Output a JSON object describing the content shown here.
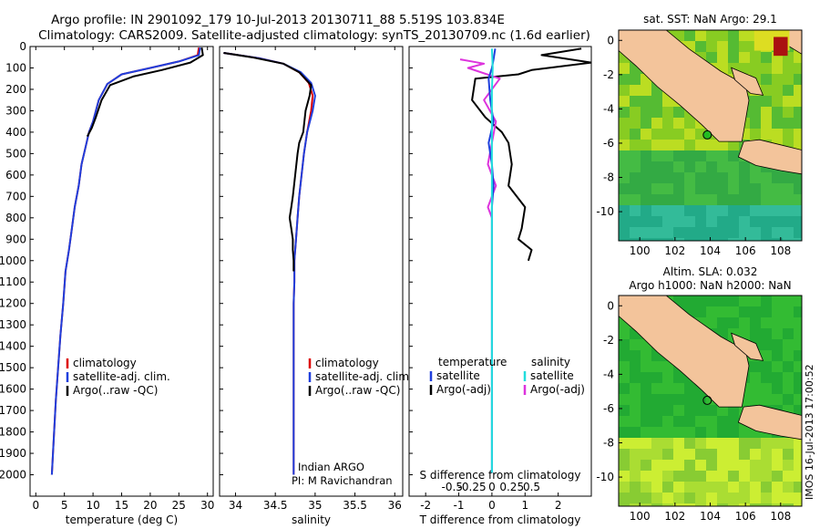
{
  "title_line1": "Argo profile: IN 2901092_179 10-Jul-2013 20130711_88 5.519S 103.834E",
  "title_line2": "Climatology: CARS2009. Satellite-adjusted climatology: synTS_20130709.nc (1.6d earlier)",
  "watermark": "IMOS 16-Jul-2013 17:00:52",
  "colors": {
    "climatology": "#dd0000",
    "satellite": "#1f3fdd",
    "argo": "#000000",
    "sat_salinity": "#22dddd",
    "argo_adj_salinity": "#dd33dd",
    "land": "#f3c49b",
    "sea_green": "#22bb33"
  },
  "chart_data": [
    {
      "type": "line",
      "id": "temperature",
      "xlabel": "temperature (deg C)",
      "xlim": [
        -1,
        31
      ],
      "ylim": [
        0,
        2100
      ],
      "xticks": [
        0,
        5,
        10,
        15,
        20,
        25,
        30
      ],
      "yticks": [
        0,
        100,
        200,
        300,
        400,
        500,
        600,
        700,
        800,
        900,
        1000,
        1100,
        1200,
        1300,
        1400,
        1500,
        1600,
        1700,
        1800,
        1900,
        2000
      ],
      "legend": {
        "position": "bottom-left",
        "entries": [
          "climatology",
          "satellite-adj. clim.",
          "Argo(..raw -QC)"
        ]
      },
      "series": [
        {
          "name": "climatology",
          "x": [
            28.5,
            28.3,
            25,
            20,
            15,
            12.5,
            11,
            10,
            9.3,
            8.7,
            8,
            7.5,
            6.8,
            6.3,
            5.8,
            5.2,
            4.8,
            4.3,
            3.9,
            3.5,
            3.2,
            2.8
          ],
          "y": [
            5,
            40,
            70,
            100,
            130,
            175,
            250,
            350,
            400,
            470,
            550,
            650,
            750,
            850,
            950,
            1050,
            1200,
            1350,
            1500,
            1650,
            1800,
            2000
          ]
        },
        {
          "name": "satellite-adj. clim.",
          "x": [
            28.7,
            28.5,
            25,
            20,
            15,
            12.5,
            11,
            10,
            9.3,
            8.7,
            8,
            7.5,
            6.8,
            6.3,
            5.8,
            5.2,
            4.8,
            4.3,
            3.9,
            3.5,
            3.2,
            2.8
          ],
          "y": [
            5,
            40,
            70,
            100,
            130,
            175,
            250,
            350,
            400,
            470,
            550,
            650,
            750,
            850,
            950,
            1050,
            1200,
            1350,
            1500,
            1650,
            1800,
            2000
          ]
        },
        {
          "name": "Argo(..raw -QC)",
          "x": [
            29,
            29.2,
            27,
            22,
            17,
            13,
            11.5,
            10.5,
            9.8,
            9
          ],
          "y": [
            5,
            40,
            75,
            110,
            140,
            180,
            250,
            330,
            380,
            420
          ]
        }
      ]
    },
    {
      "type": "line",
      "id": "salinity",
      "xlabel": "salinity",
      "xlim": [
        33.8,
        36.1
      ],
      "ylim": [
        0,
        2100
      ],
      "xticks": [
        34,
        34.5,
        35,
        35.5,
        36
      ],
      "legend": {
        "position": "bottom-right",
        "entries": [
          "climatology",
          "satellite-adj. clim.",
          "Argo(..raw -QC)"
        ]
      },
      "annotation": [
        "Indian ARGO",
        "PI: M Ravichandran"
      ],
      "series": [
        {
          "name": "climatology",
          "x": [
            33.85,
            34.3,
            34.6,
            34.8,
            34.92,
            34.97,
            34.95,
            34.9,
            34.86,
            34.83,
            34.8,
            34.78,
            34.76,
            34.74,
            34.74,
            34.73,
            34.73,
            34.73,
            34.73,
            34.73
          ],
          "y": [
            30,
            55,
            80,
            120,
            170,
            230,
            300,
            400,
            500,
            600,
            700,
            800,
            900,
            1000,
            1100,
            1200,
            1300,
            1500,
            1800,
            2000
          ]
        },
        {
          "name": "satellite-adj. clim.",
          "x": [
            33.85,
            34.3,
            34.6,
            34.82,
            34.95,
            35.0,
            34.97,
            34.9,
            34.86,
            34.83,
            34.8,
            34.78,
            34.76,
            34.74,
            34.74,
            34.73,
            34.73,
            34.73,
            34.73,
            34.73
          ],
          "y": [
            30,
            55,
            80,
            120,
            170,
            230,
            300,
            400,
            500,
            600,
            700,
            800,
            900,
            1000,
            1100,
            1200,
            1300,
            1500,
            1800,
            2000
          ]
        },
        {
          "name": "Argo(..raw -QC)",
          "x": [
            33.85,
            34.2,
            34.6,
            34.8,
            34.95,
            34.93,
            34.88,
            34.85,
            34.8,
            34.78,
            34.75,
            34.72,
            34.7,
            34.68,
            34.7,
            34.72,
            34.72,
            34.73,
            34.73
          ],
          "y": [
            30,
            50,
            80,
            120,
            180,
            230,
            300,
            400,
            450,
            500,
            600,
            700,
            750,
            800,
            850,
            900,
            950,
            1000,
            1050
          ]
        }
      ]
    },
    {
      "type": "line",
      "id": "difference",
      "xlabel": "T difference from climatology",
      "xlabel2": "S difference from climatology",
      "xlim": [
        -2.5,
        3
      ],
      "ylim": [
        0,
        2100
      ],
      "xticks": [
        -2,
        -1,
        0,
        1,
        2
      ],
      "xticks2": [
        -0.5,
        -0.25,
        0,
        0.25,
        0.5
      ],
      "legend": {
        "position": "bottom",
        "entries_temperature": [
          "temperature",
          "satellite",
          "Argo(-adj)"
        ],
        "entries_salinity": [
          "salinity",
          "satellite",
          "Argo(-adj)"
        ]
      },
      "series": [
        {
          "name": "T satellite",
          "x": [
            0.1,
            0.05,
            0.0,
            -0.1,
            -0.05,
            0.05,
            -0.1,
            0.0,
            0.05,
            0.0,
            0.0,
            0.0,
            0.0,
            0.0,
            0.0,
            0.0
          ],
          "y": [
            10,
            60,
            100,
            150,
            250,
            350,
            450,
            550,
            650,
            750,
            900,
            1100,
            1300,
            1500,
            1800,
            1990
          ]
        },
        {
          "name": "T Argo(-adj)",
          "x": [
            2.7,
            1.5,
            3.0,
            1.2,
            0.8,
            -0.5,
            -0.6,
            -0.2,
            0.3,
            0.5,
            0.6,
            0.5,
            1.0,
            0.9,
            0.8,
            1.2,
            1.1
          ],
          "y": [
            10,
            40,
            75,
            110,
            130,
            150,
            250,
            330,
            400,
            450,
            550,
            650,
            750,
            850,
            900,
            950,
            1000
          ]
        },
        {
          "name": "S satellite",
          "x": [
            0.0,
            0.01,
            0.0,
            0.0,
            0.0,
            0.0,
            0.0,
            0.0,
            0.0,
            0.0
          ],
          "y": [
            10,
            100,
            200,
            400,
            600,
            800,
            1000,
            1300,
            1600,
            1990
          ]
        },
        {
          "name": "S Argo(-adj)",
          "x": [
            -0.4,
            -0.1,
            -0.3,
            0.1,
            -0.1,
            0.05,
            0.0,
            -0.05,
            0.05,
            -0.05,
            0.0
          ],
          "y": [
            60,
            80,
            100,
            150,
            250,
            350,
            450,
            550,
            650,
            750,
            800
          ]
        }
      ]
    },
    {
      "type": "heatmap",
      "id": "sst_map",
      "title": "sat. SST: NaN Argo: 29.1",
      "xticks": [
        100,
        102,
        104,
        106,
        108
      ],
      "yticks": [
        0,
        -2,
        -4,
        -6,
        -8,
        -10
      ],
      "xlim": [
        98.8,
        109.2
      ],
      "ylim": [
        -11.7,
        0.6
      ],
      "marker": [
        103.834,
        -5.519
      ]
    },
    {
      "type": "heatmap",
      "id": "sla_map",
      "title_line1": "Altim. SLA: 0.032",
      "title_line2": "Argo h1000: NaN h2000: NaN",
      "xticks": [
        100,
        102,
        104,
        106,
        108
      ],
      "yticks": [
        0,
        -2,
        -4,
        -6,
        -8,
        -10
      ],
      "xlim": [
        98.8,
        109.2
      ],
      "ylim": [
        -11.7,
        0.6
      ],
      "marker": [
        103.834,
        -5.519
      ]
    }
  ]
}
